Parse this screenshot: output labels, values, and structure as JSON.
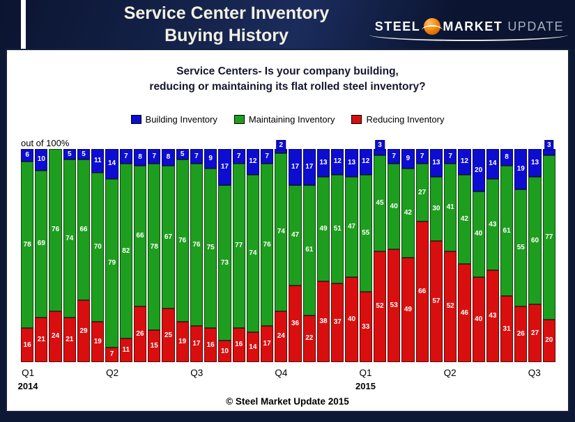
{
  "header": {
    "title_line1": "Service Center Inventory",
    "title_line2": "Buying History",
    "logo": {
      "steel": "STEEL",
      "market": "MARKET",
      "update": "UPDATE"
    }
  },
  "chart": {
    "title_bold": "Service Centers-",
    "title_rest": " Is your company building,",
    "title_line2": "reducing or maintaining its flat rolled steel inventory?",
    "axis_note": "out of 100%",
    "copyright": "© Steel Market Update 2015"
  },
  "chart_data": {
    "type": "bar",
    "stacked": true,
    "unit": "percent of respondents",
    "ylim": [
      0,
      100
    ],
    "legend_position": "top",
    "small_label_threshold": 5,
    "series": [
      {
        "key": "building",
        "name": "Building Inventory",
        "color": "#0D0DD2",
        "values": [
          6,
          10,
          0,
          5,
          5,
          11,
          14,
          7,
          8,
          7,
          8,
          5,
          7,
          9,
          17,
          7,
          12,
          7,
          2,
          17,
          17,
          13,
          12,
          13,
          12,
          3,
          7,
          9,
          7,
          13,
          7,
          12,
          20,
          14,
          8,
          19,
          13,
          3
        ]
      },
      {
        "key": "maintaining",
        "name": "Maintaining Inventory",
        "color": "#1E9E1E",
        "values": [
          78,
          69,
          76,
          74,
          66,
          70,
          79,
          82,
          66,
          78,
          67,
          76,
          76,
          75,
          73,
          77,
          74,
          76,
          74,
          47,
          61,
          49,
          51,
          47,
          55,
          45,
          40,
          42,
          27,
          30,
          41,
          42,
          40,
          43,
          61,
          55,
          60,
          77
        ]
      },
      {
        "key": "reducing",
        "name": "Reducing Inventory",
        "color": "#D90F0F",
        "values": [
          16,
          21,
          24,
          21,
          29,
          19,
          7,
          11,
          26,
          15,
          25,
          19,
          17,
          16,
          10,
          16,
          14,
          17,
          24,
          36,
          22,
          38,
          37,
          40,
          33,
          52,
          53,
          49,
          66,
          57,
          52,
          46,
          40,
          43,
          31,
          26,
          27,
          20
        ]
      }
    ],
    "x_axis": {
      "quarter_ticks": [
        {
          "label": "Q1",
          "bar_index": 0
        },
        {
          "label": "Q2",
          "bar_index": 6
        },
        {
          "label": "Q3",
          "bar_index": 12
        },
        {
          "label": "Q4",
          "bar_index": 18
        },
        {
          "label": "Q1",
          "bar_index": 24
        },
        {
          "label": "Q2",
          "bar_index": 30
        },
        {
          "label": "Q3",
          "bar_index": 36
        }
      ],
      "year_ticks": [
        {
          "label": "2014",
          "bar_index": 0
        },
        {
          "label": "2015",
          "bar_index": 24
        }
      ]
    }
  }
}
